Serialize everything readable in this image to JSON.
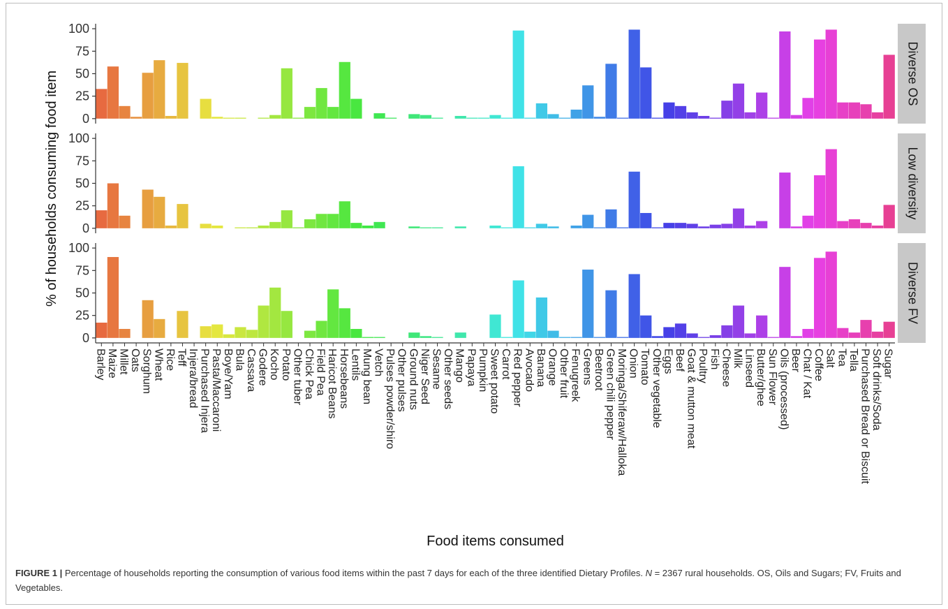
{
  "chart_data": {
    "type": "bar",
    "xlabel": "Food items consumed",
    "ylabel": "% of households consuming food item",
    "ylim": [
      0,
      100
    ],
    "yticks": [
      0,
      25,
      50,
      75,
      100
    ],
    "categories": [
      "Barley",
      "Maize",
      "Millet",
      "Oats",
      "Sorghum",
      "Wheat",
      "Rice",
      "Teff",
      "Injera/bread",
      "Purchased Injera",
      "Pasta/Maccaroni",
      "Boye/Yam",
      "Bula",
      "Cassava",
      "Godere",
      "Kocho",
      "Potato",
      "Other tuber",
      "Chick Pea",
      "Field Pea",
      "Haricot Beans",
      "Horsebeans",
      "Lentils",
      "Mung bean",
      "Vetch",
      "Pulses powder/shiro",
      "Other pulses",
      "Ground nuts",
      "Niger Seed",
      "Sesame",
      "Other seeds",
      "Mango",
      "Papaya",
      "Pumpkin",
      "Sweet potato",
      "Carrot",
      "Red pepper",
      "Avocado",
      "Banana",
      "Orange",
      "Other fruit",
      "Fenugreek",
      "Greens",
      "Beetroot",
      "Green chili pepper",
      "Moringa/Shiferaw/Halloka",
      "Onion",
      "Tomato",
      "Other vegetable",
      "Eggs",
      "Beef",
      "Goat & mutton meat",
      "Poultry",
      "Fish",
      "Cheese",
      "Milk",
      "Linseed",
      "Butter/ghee",
      "Sun Flower",
      "Oils (processed)",
      "Beer",
      "Chat / Kat",
      "Coffee",
      "Salt",
      "Tea",
      "Tella",
      "Purchased Bread or Biscuit",
      "Soft drinks/Soda",
      "Sugar"
    ],
    "series": [
      {
        "name": "Diverse OS",
        "values": [
          33,
          58,
          14,
          2,
          51,
          65,
          3,
          62,
          0,
          22,
          2,
          1,
          1,
          0,
          1,
          4,
          56,
          1,
          13,
          34,
          13,
          63,
          22,
          0,
          6,
          1,
          0,
          5,
          4,
          1,
          0,
          3,
          1,
          1,
          4,
          1,
          98,
          1,
          17,
          5,
          1,
          10,
          37,
          2,
          61,
          1,
          99,
          57,
          1,
          18,
          14,
          7,
          3,
          1,
          20,
          39,
          7,
          29,
          1,
          97,
          4,
          23,
          88,
          99,
          18,
          18,
          16,
          7,
          71
        ]
      },
      {
        "name": "Low diversity",
        "values": [
          20,
          50,
          14,
          0,
          43,
          35,
          3,
          27,
          0,
          5,
          3,
          0,
          1,
          1,
          3,
          7,
          20,
          1,
          10,
          16,
          16,
          30,
          6,
          3,
          7,
          0,
          0,
          2,
          1,
          1,
          0,
          2,
          0,
          0,
          3,
          1,
          69,
          1,
          5,
          2,
          0,
          3,
          15,
          1,
          21,
          1,
          63,
          17,
          1,
          6,
          6,
          5,
          2,
          4,
          5,
          22,
          3,
          8,
          0,
          62,
          2,
          14,
          59,
          88,
          8,
          10,
          6,
          3,
          26
        ]
      },
      {
        "name": "Diverse FV",
        "values": [
          17,
          90,
          10,
          0,
          42,
          21,
          0,
          30,
          0,
          13,
          15,
          4,
          12,
          9,
          36,
          56,
          30,
          0,
          8,
          19,
          54,
          33,
          10,
          1,
          1,
          0,
          0,
          6,
          2,
          1,
          0,
          6,
          0,
          0,
          26,
          1,
          64,
          7,
          45,
          8,
          1,
          1,
          76,
          1,
          53,
          1,
          71,
          25,
          2,
          12,
          16,
          5,
          1,
          3,
          14,
          36,
          5,
          25,
          1,
          79,
          2,
          10,
          89,
          96,
          11,
          6,
          20,
          7,
          18
        ]
      }
    ],
    "facet_labels": [
      "Diverse OS",
      "Low diversity",
      "Diverse FV"
    ],
    "grid": false,
    "legend": "none",
    "colors": {
      "strip_bg": "#c8c8c8",
      "panel_bg": "#ffffff",
      "axis": "#333333"
    }
  },
  "caption": {
    "label": "FIGURE 1 |",
    "text_before_n": " Percentage of households reporting the consumption of various food items within the past 7 days for each of the three identified Dietary Profiles. ",
    "n_symbol": "N",
    "text_after_n": " = 2367 rural households. OS, Oils and Sugars; FV, Fruits and Vegetables."
  }
}
